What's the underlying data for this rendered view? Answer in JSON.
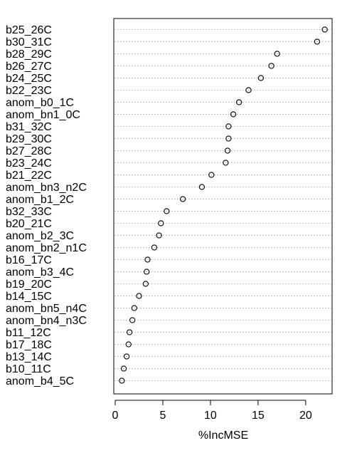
{
  "chart_data": {
    "type": "dotchart",
    "xlabel": "%IncMSE",
    "xlim": [
      0,
      22.7
    ],
    "xticks": [
      0,
      5,
      10,
      15,
      20
    ],
    "grid": "dotted horizontal guide lines per category",
    "categories": [
      "b25_26C",
      "b30_31C",
      "b28_29C",
      "b26_27C",
      "b24_25C",
      "b22_23C",
      "anom_b0_1C",
      "anom_bn1_0C",
      "b31_32C",
      "b29_30C",
      "b27_28C",
      "b23_24C",
      "b21_22C",
      "anom_bn3_n2C",
      "anom_b1_2C",
      "b32_33C",
      "b20_21C",
      "anom_b2_3C",
      "anom_bn2_n1C",
      "b16_17C",
      "anom_b3_4C",
      "b19_20C",
      "b14_15C",
      "anom_bn5_n4C",
      "anom_bn4_n3C",
      "b11_12C",
      "b17_18C",
      "b13_14C",
      "b10_11C",
      "anom_b4_5C"
    ],
    "values": [
      22.0,
      21.2,
      17.0,
      16.4,
      15.3,
      14.0,
      13.0,
      12.4,
      11.9,
      11.9,
      11.8,
      11.6,
      10.1,
      9.1,
      7.1,
      5.4,
      4.8,
      4.6,
      4.1,
      3.4,
      3.3,
      3.2,
      2.5,
      2.0,
      1.8,
      1.5,
      1.4,
      1.2,
      0.9,
      0.7
    ]
  }
}
